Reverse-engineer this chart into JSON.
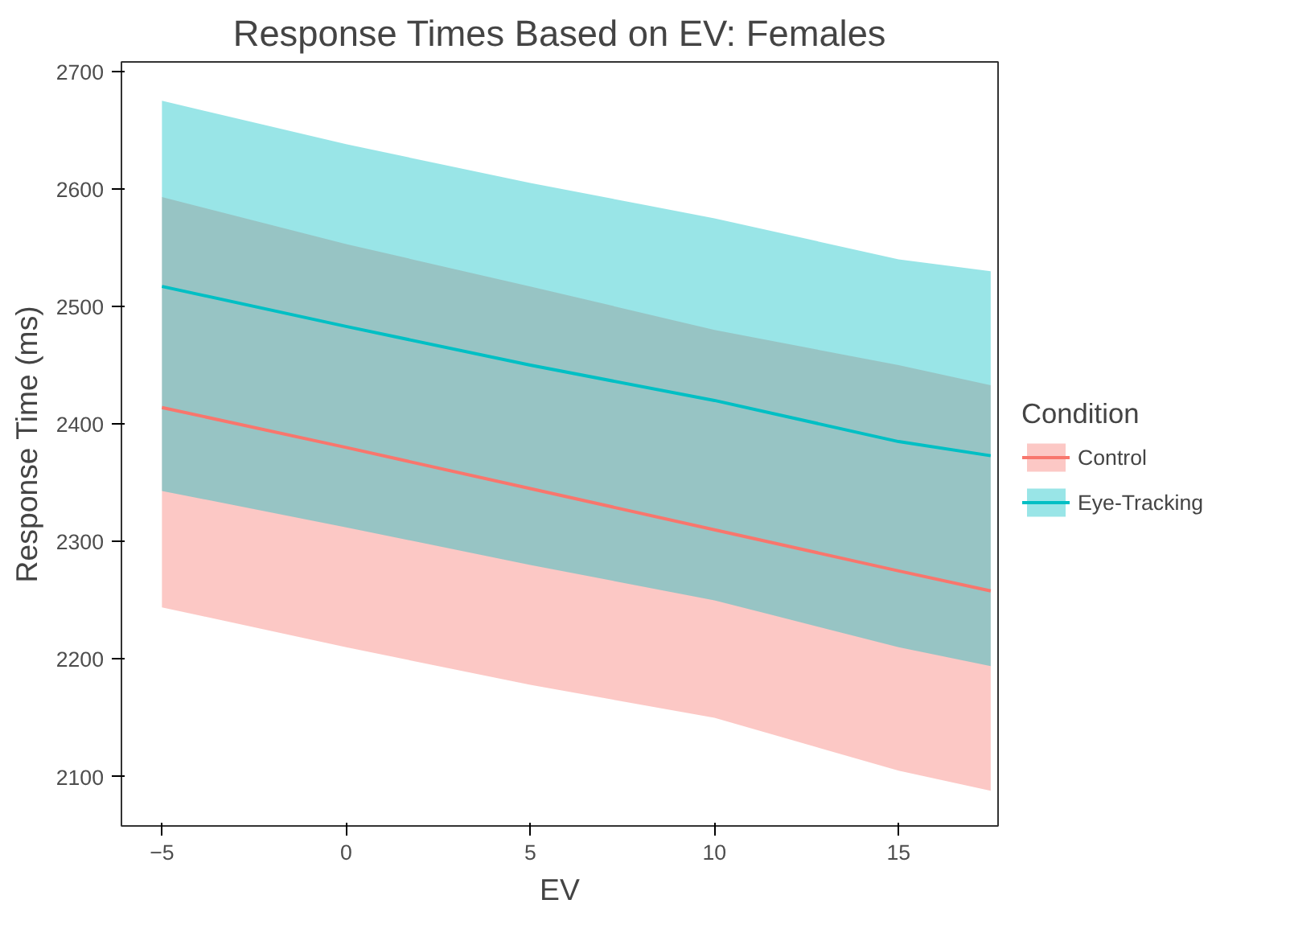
{
  "chart_data": {
    "type": "line",
    "title": "Response Times Based on EV: Females",
    "xlabel": "EV",
    "ylabel": "Response Time (ms)",
    "legend_title": "Condition",
    "x": [
      -5,
      0,
      5,
      10,
      15,
      17.5
    ],
    "series": [
      {
        "name": "Control",
        "color": "#f8766d",
        "values": [
          2414,
          2380,
          2345,
          2310,
          2275,
          2258
        ],
        "lower": [
          2244,
          2210,
          2178,
          2150,
          2105,
          2088
        ],
        "upper": [
          2593,
          2553,
          2517,
          2480,
          2450,
          2433
        ]
      },
      {
        "name": "Eye-Tracking",
        "color": "#00bfc4",
        "values": [
          2517,
          2483,
          2450,
          2420,
          2385,
          2373
        ],
        "lower": [
          2343,
          2312,
          2280,
          2250,
          2210,
          2194
        ],
        "upper": [
          2675,
          2638,
          2605,
          2575,
          2540,
          2530
        ]
      }
    ],
    "xlim": [
      -6.1,
      17.7
    ],
    "ylim": [
      2058,
      2708
    ],
    "xticks": [
      -5,
      0,
      5,
      10,
      15
    ],
    "yticks": [
      2100,
      2200,
      2300,
      2400,
      2500,
      2600,
      2700
    ],
    "grid": false,
    "legend": "right",
    "line_style": "solid",
    "marker": "none"
  }
}
